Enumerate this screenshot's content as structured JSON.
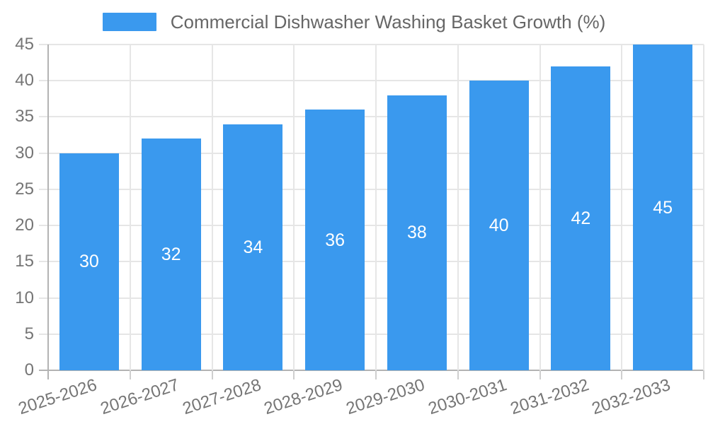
{
  "chart_data": {
    "type": "bar",
    "title": "Commercial Dishwasher Washing Basket Growth (%)",
    "categories": [
      "2025-2026",
      "2026-2027",
      "2027-2028",
      "2028-2029",
      "2029-2030",
      "2030-2031",
      "2031-2032",
      "2032-2033"
    ],
    "values": [
      30,
      32,
      34,
      36,
      38,
      40,
      42,
      45
    ],
    "xlabel": "",
    "ylabel": "",
    "ylim": [
      0,
      45
    ],
    "yticks": [
      0,
      5,
      10,
      15,
      20,
      25,
      30,
      35,
      40,
      45
    ],
    "grid": true,
    "legend_position": "top",
    "value_labels_inside_bars": true
  },
  "legend": {
    "label": "Commercial Dishwasher Washing Basket Growth (%)"
  },
  "colors": {
    "bar": "#3a99ee",
    "grid": "#e6e6e6",
    "axis": "#b3b3b3",
    "tick": "#cfcfcf",
    "tick_label": "#757575",
    "title": "#666666",
    "value_label": "#ffffff",
    "background": "#ffffff"
  }
}
